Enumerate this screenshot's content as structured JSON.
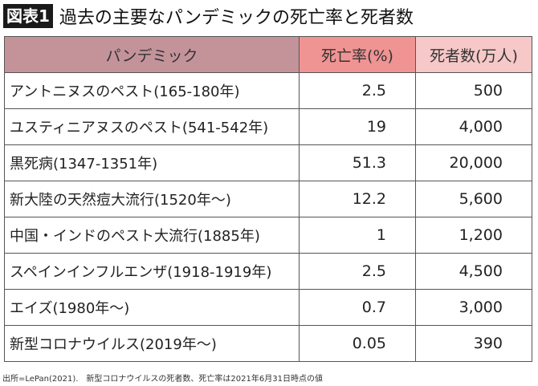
{
  "title": {
    "badge": "図表1",
    "text": "過去の主要なパンデミックの死亡率と死者数"
  },
  "table": {
    "headers": [
      "パンデミック",
      "死亡率(%)",
      "死者数(万人)"
    ],
    "rows": [
      [
        "アントニヌスのペスト(165-180年)",
        "2.5",
        "500"
      ],
      [
        "ユスティニアヌスのペスト(541-542年)",
        "19",
        "4,000"
      ],
      [
        "黒死病(1347-1351年)",
        "51.3",
        "20,000"
      ],
      [
        "新大陸の天然痘大流行(1520年～)",
        "12.2",
        "5,600"
      ],
      [
        "中国・インドのペスト大流行(1885年)",
        "1",
        "1,200"
      ],
      [
        "スペインインフルエンザ(1918-1919年)",
        "2.5",
        "4,500"
      ],
      [
        "エイズ(1980年～)",
        "0.7",
        "3,000"
      ],
      [
        "新型コロナウイルス(2019年～)",
        "0.05",
        "390"
      ]
    ]
  },
  "footnote": "出所=LePan(2021).　新型コロナウイルスの死者数、死亡率は2021年6月31日時点の値",
  "colors": {
    "header_col1": "#c4939a",
    "header_col2": "#f09393",
    "header_col3": "#f6c8c8"
  }
}
